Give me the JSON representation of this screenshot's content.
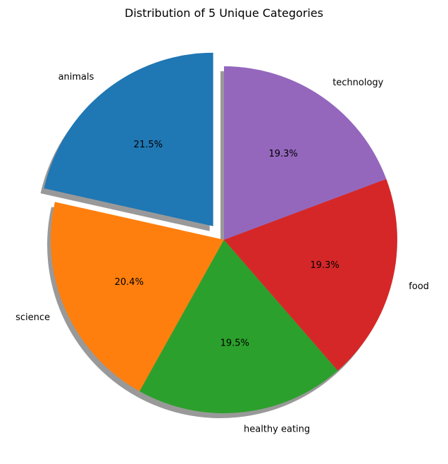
{
  "chart_data": {
    "type": "pie",
    "title": "Distribution of 5 Unique Categories",
    "slices": [
      {
        "label": "animals",
        "percent": 21.5,
        "pct_label": "21.5%",
        "color": "#1f77b4",
        "exploded": true
      },
      {
        "label": "science",
        "percent": 20.4,
        "pct_label": "20.4%",
        "color": "#ff7f0e",
        "exploded": false
      },
      {
        "label": "healthy eating",
        "percent": 19.5,
        "pct_label": "19.5%",
        "color": "#2ca02c",
        "exploded": false
      },
      {
        "label": "food",
        "percent": 19.3,
        "pct_label": "19.3%",
        "color": "#d62728",
        "exploded": false
      },
      {
        "label": "technology",
        "percent": 19.3,
        "pct_label": "19.3%",
        "color": "#9467bd",
        "exploded": false
      }
    ],
    "start_angle_deg": 90,
    "direction": "counterclockwise",
    "shadow": true,
    "legend": "none"
  }
}
